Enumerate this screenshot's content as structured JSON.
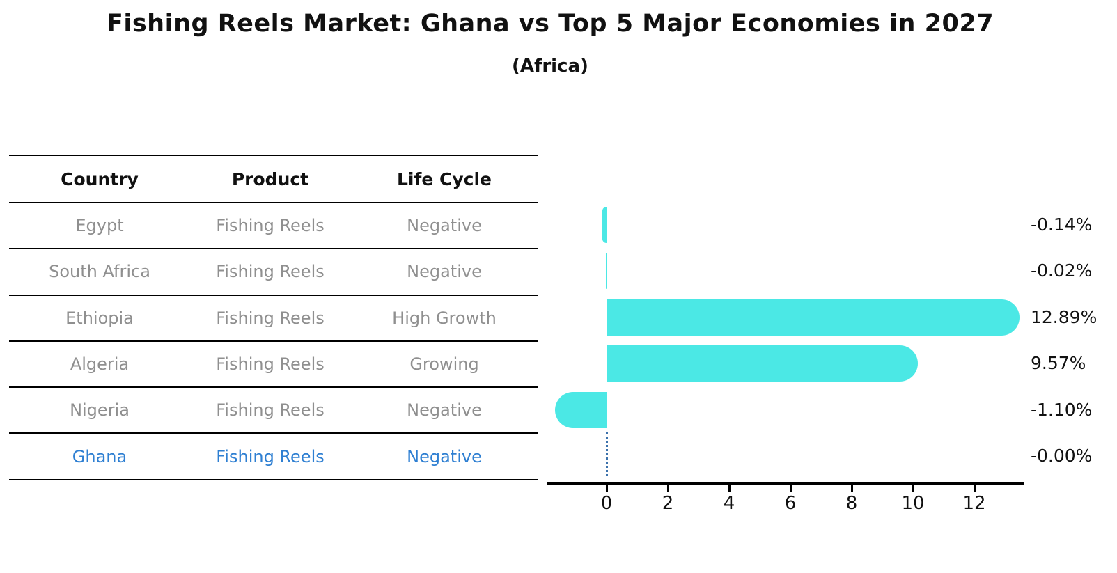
{
  "title": "Fishing Reels Market: Ghana vs Top 5 Major Economies in 2027",
  "subtitle": "(Africa)",
  "table": {
    "headers": [
      "Country",
      "Product",
      "Life Cycle"
    ],
    "rows": [
      {
        "country": "Egypt",
        "product": "Fishing Reels",
        "life_cycle": "Negative",
        "highlight": false
      },
      {
        "country": "South Africa",
        "product": "Fishing Reels",
        "life_cycle": "Negative",
        "highlight": false
      },
      {
        "country": "Ethiopia",
        "product": "Fishing Reels",
        "life_cycle": "High Growth",
        "highlight": false
      },
      {
        "country": "Algeria",
        "product": "Fishing Reels",
        "life_cycle": "Growing",
        "highlight": false
      },
      {
        "country": "Nigeria",
        "product": "Fishing Reels",
        "life_cycle": "Negative",
        "highlight": false
      },
      {
        "country": "Ghana",
        "product": "Fishing Reels",
        "life_cycle": "Negative",
        "highlight": true
      }
    ]
  },
  "chart_data": {
    "type": "bar",
    "orientation": "horizontal",
    "title": "Fishing Reels Market: Ghana vs Top 5 Major Economies in 2027",
    "subtitle": "(Africa)",
    "categories": [
      "Egypt",
      "South Africa",
      "Ethiopia",
      "Algeria",
      "Nigeria",
      "Ghana"
    ],
    "values": [
      -0.14,
      -0.02,
      12.89,
      9.57,
      -1.1,
      -0.0
    ],
    "value_labels": [
      "-0.14%",
      "-0.02%",
      "12.89%",
      "9.57%",
      "-1.10%",
      "-0.00%"
    ],
    "unit": "percent (CAGR)",
    "xticks": [
      0,
      2,
      4,
      6,
      8,
      10,
      12
    ],
    "xlim": [
      -1.95,
      13.6
    ],
    "grid": false,
    "legend": false,
    "xlabel": "",
    "ylabel": "",
    "bar_color": "#4be8e5",
    "highlight_text_color": "#2e7fd2",
    "highlight_marker": "dotted-zero-line",
    "highlight_marker_color": "#3c72ac",
    "table_text_color": "#8f8f8f",
    "axis_color": "#000000"
  }
}
